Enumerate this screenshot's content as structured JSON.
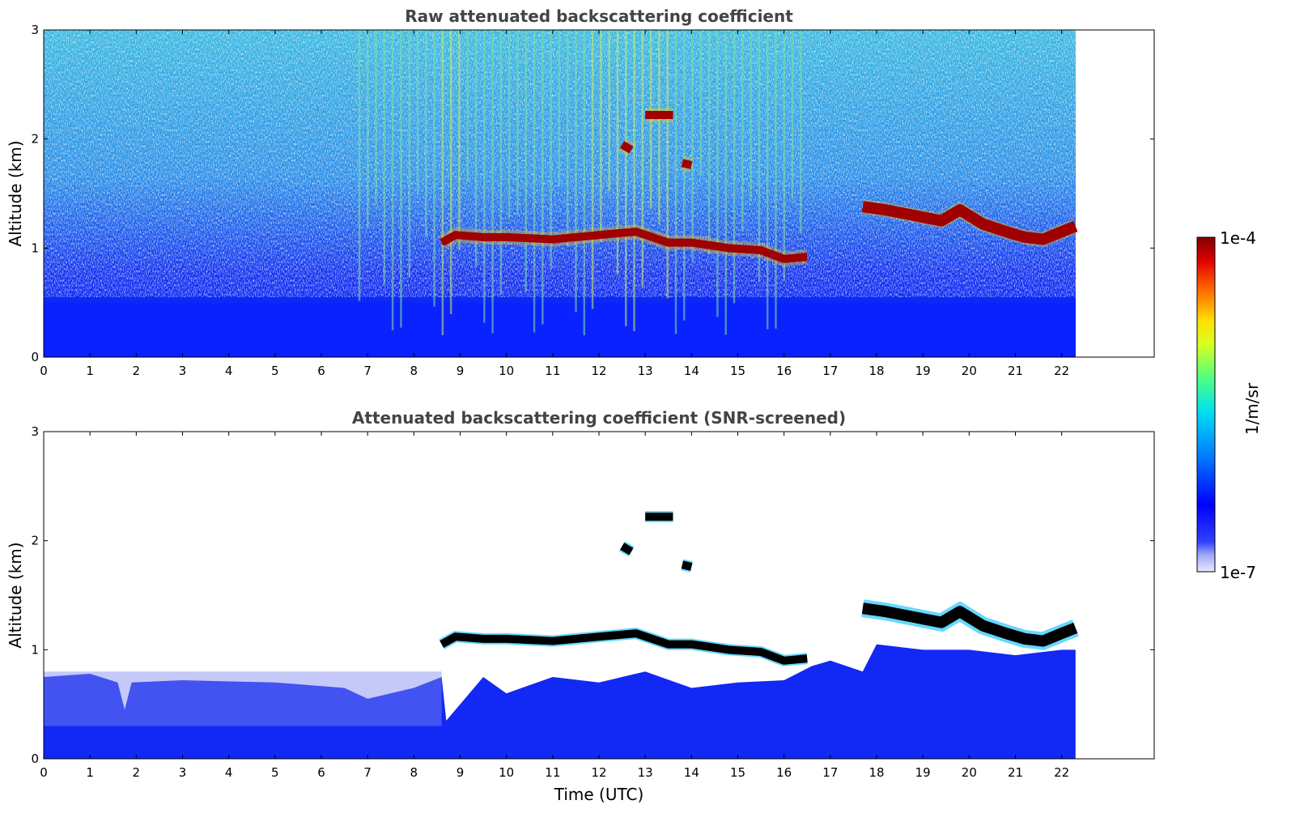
{
  "chart_data": [
    {
      "type": "heatmap",
      "title": "Raw attenuated backscattering coefficient",
      "xlabel": "",
      "ylabel": "Altitude (km)",
      "xlim": [
        0,
        24
      ],
      "ylim": [
        0,
        3
      ],
      "x_ticks": [
        "0",
        "1",
        "2",
        "3",
        "4",
        "5",
        "6",
        "7",
        "8",
        "9",
        "10",
        "11",
        "12",
        "13",
        "14",
        "15",
        "16",
        "17",
        "18",
        "19",
        "20",
        "21",
        "22"
      ],
      "y_ticks": [
        "0",
        "1",
        "2",
        "3"
      ],
      "data_end_time": 22.3,
      "surface_layer_top_km": 0.5,
      "cloud_layers": [
        {
          "t": [
            8.6,
            8.9,
            9.5,
            10.0,
            11.0,
            12.0,
            12.8,
            13.5,
            14.0,
            14.8,
            15.5,
            16.0,
            16.5
          ],
          "alt": [
            1.05,
            1.12,
            1.1,
            1.1,
            1.08,
            1.12,
            1.15,
            1.05,
            1.05,
            1.0,
            0.98,
            0.9,
            0.92
          ]
        },
        {
          "t": [
            17.7,
            18.2,
            18.8,
            19.4,
            19.8,
            20.3,
            20.8,
            21.2,
            21.6,
            22.0,
            22.3
          ],
          "alt": [
            1.38,
            1.35,
            1.3,
            1.25,
            1.35,
            1.22,
            1.15,
            1.1,
            1.08,
            1.15,
            1.2
          ]
        },
        {
          "t": [
            13.0,
            13.6
          ],
          "alt": [
            2.22,
            2.22
          ]
        },
        {
          "t": [
            12.5,
            12.7
          ],
          "alt": [
            1.95,
            1.9
          ]
        },
        {
          "t": [
            13.8,
            14.0
          ],
          "alt": [
            1.78,
            1.76
          ]
        }
      ]
    },
    {
      "type": "heatmap",
      "title": "Attenuated backscattering coefficient (SNR-screened)",
      "xlabel": "Time (UTC)",
      "ylabel": "Altitude (km)",
      "xlim": [
        0,
        24
      ],
      "ylim": [
        0,
        3
      ],
      "x_ticks": [
        "0",
        "1",
        "2",
        "3",
        "4",
        "5",
        "6",
        "7",
        "8",
        "9",
        "10",
        "11",
        "12",
        "13",
        "14",
        "15",
        "16",
        "17",
        "18",
        "19",
        "20",
        "21",
        "22"
      ],
      "y_ticks": [
        "0",
        "1",
        "2",
        "3"
      ],
      "data_end_time": 22.3,
      "surface_layer_top_km": 0.6
    }
  ],
  "colorbar": {
    "label": "1/m/sr",
    "max_label": "1e-4",
    "min_label": "1e-7",
    "colormap": "jet"
  }
}
